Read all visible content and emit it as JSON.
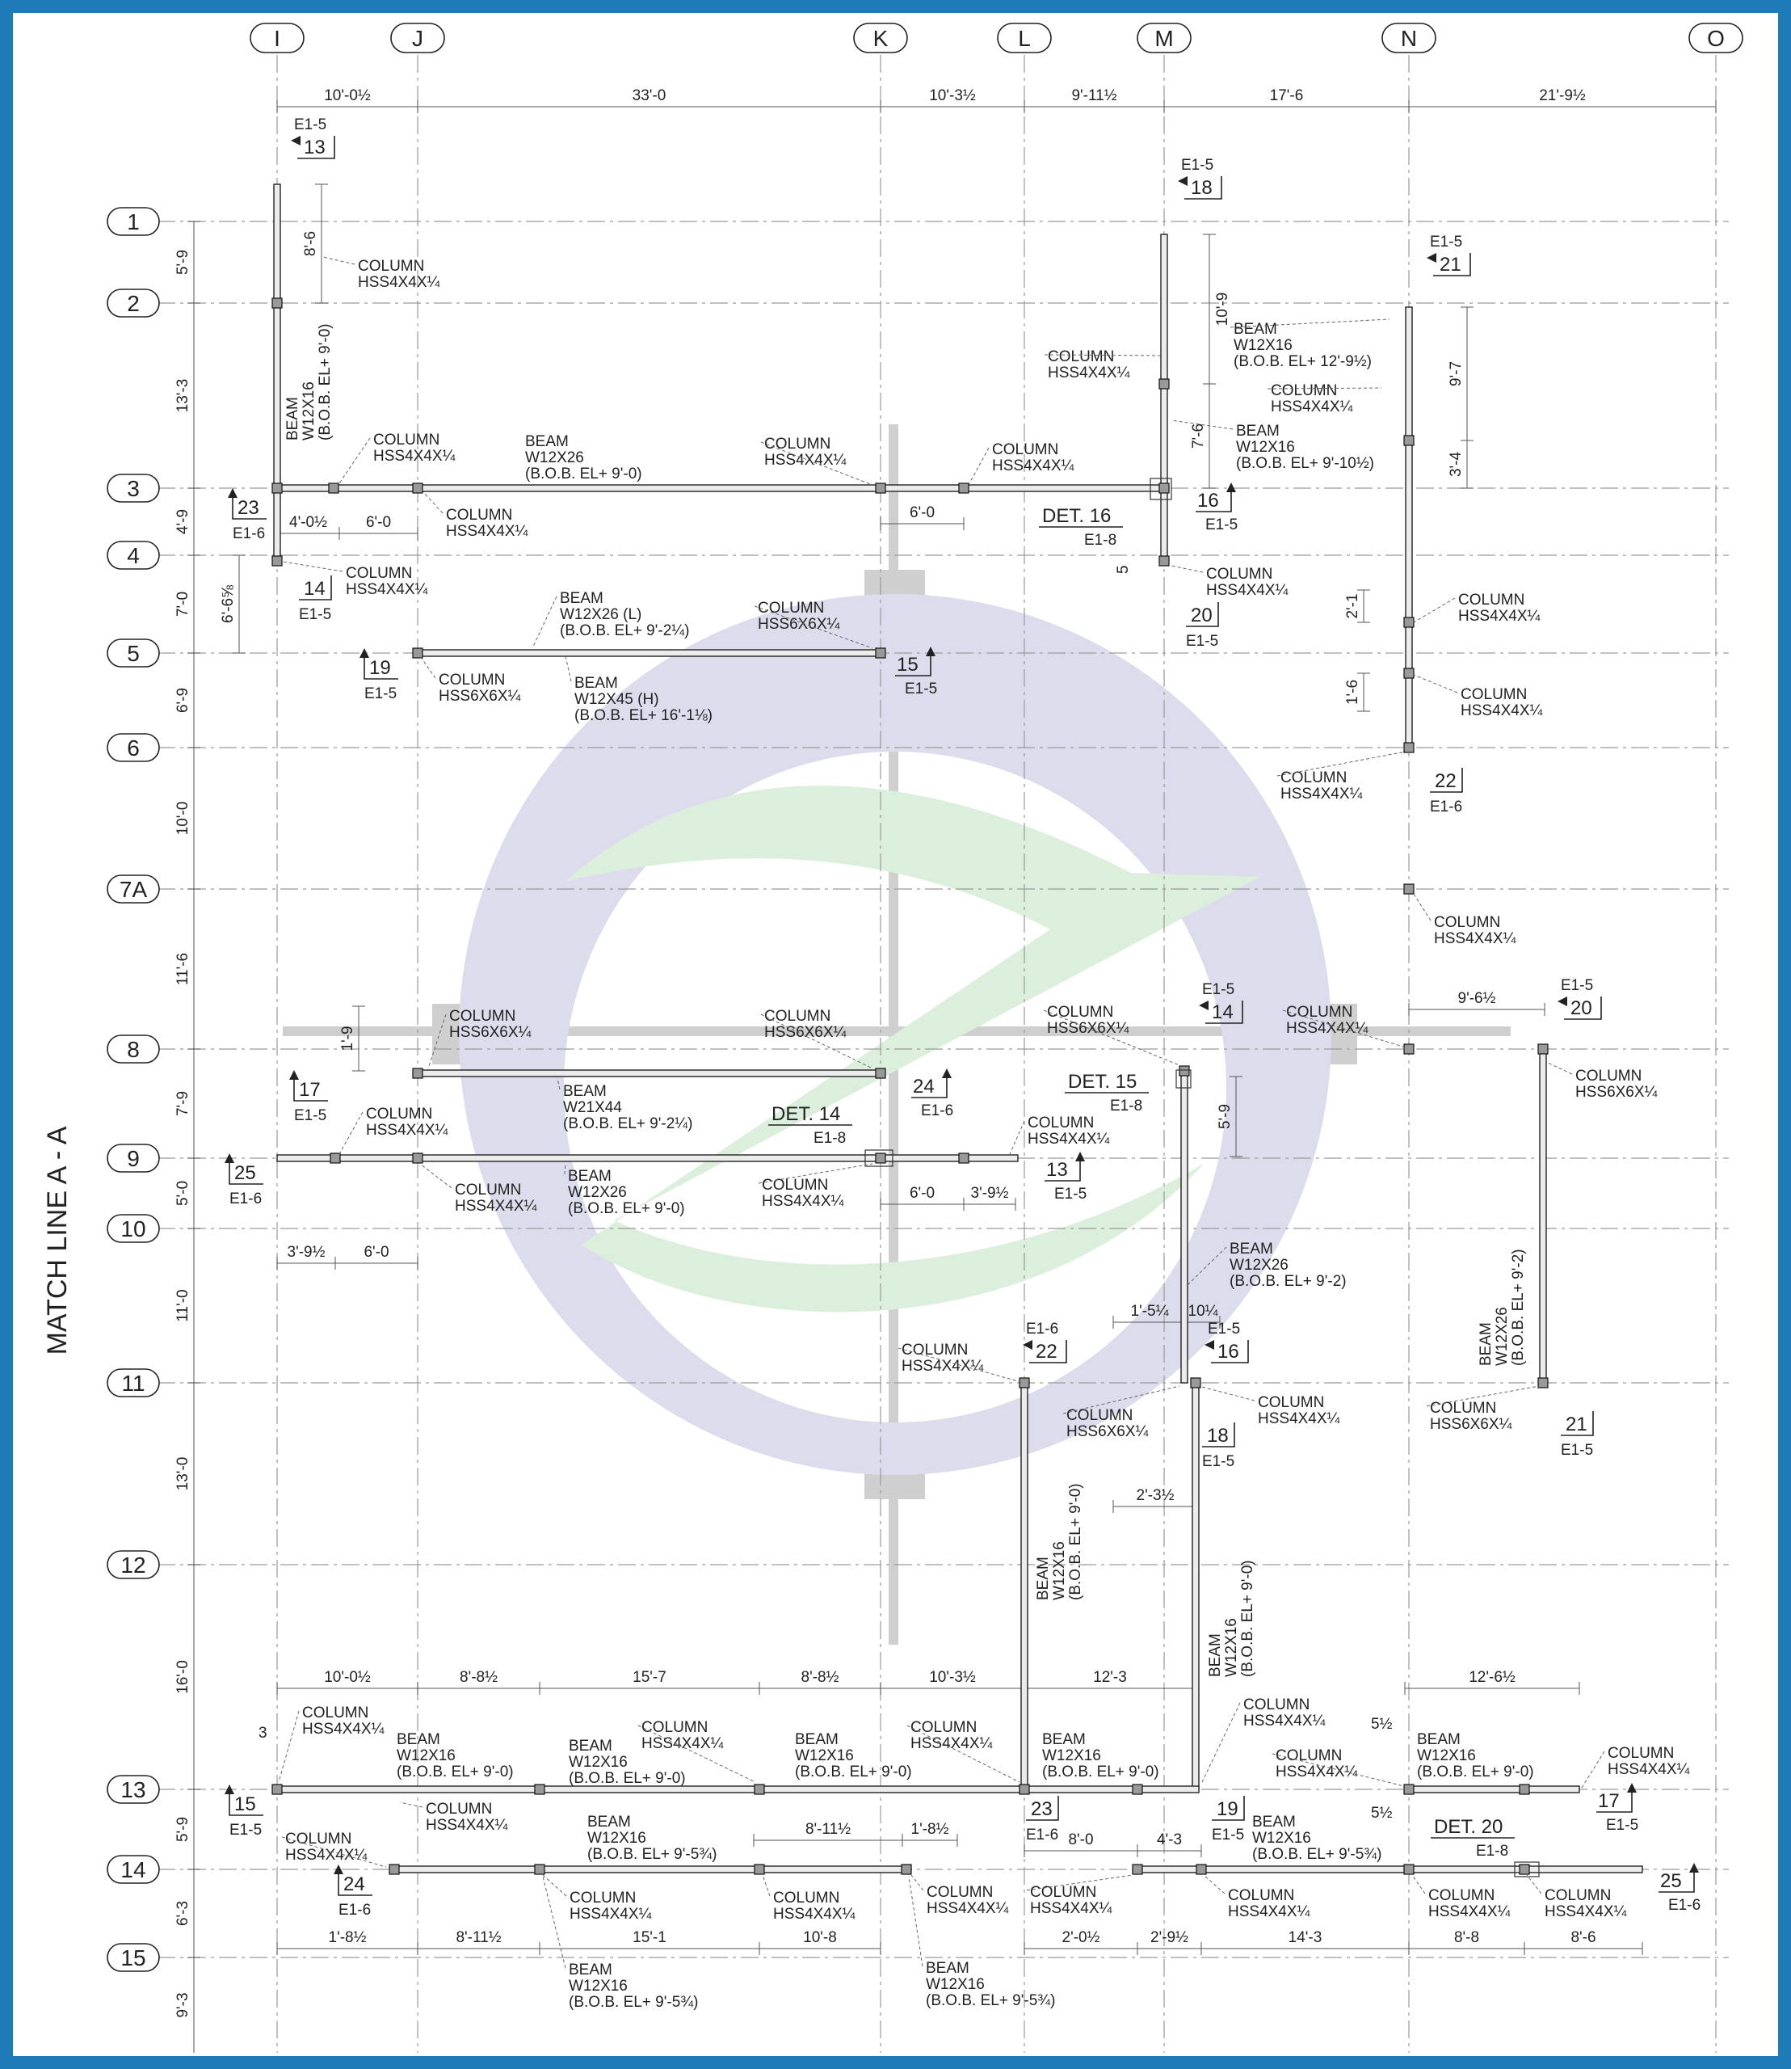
{
  "sheet": {
    "match_line": "MATCH LINE A - A",
    "colors": {
      "border": "#1f7bb8",
      "logo_purple": "#dcdcec",
      "logo_green": "#dcefdc",
      "logo_gray": "#cfcfcf"
    }
  },
  "grid_columns": [
    "I",
    "J",
    "K",
    "L",
    "M",
    "N",
    "O"
  ],
  "grid_rows": [
    "1",
    "2",
    "3",
    "4",
    "5",
    "6",
    "7A",
    "8",
    "9",
    "10",
    "11",
    "12",
    "13",
    "14",
    "15"
  ],
  "top_dimensions": [
    "10'-0½",
    "33'-0",
    "10'-3½",
    "9'-11½",
    "17'-6",
    "21'-9½"
  ],
  "row_dimensions": [
    "5'-9",
    "13'-3",
    "4'-9",
    "7'-0",
    "6'-9",
    "10'-0",
    "11'-6",
    "7'-9",
    "5'-0",
    "11'-0",
    "13'-0",
    "16'-0",
    "5'-9",
    "6'-3",
    "9'-3"
  ],
  "lower_dimensions_13": [
    "10'-0½",
    "8'-8½",
    "15'-7",
    "8'-8½",
    "10'-3½",
    "12'-3",
    "12'-6½"
  ],
  "lower_dimensions_15": [
    "1'-8½",
    "8'-11½",
    "15'-1",
    "10'-8",
    "2'-0½",
    "2'-9½",
    "14'-3",
    "8'-8",
    "8'-6"
  ],
  "local_dimensions": {
    "d1": "8'-6",
    "d2": "4'-0½",
    "d3": "6'-0",
    "d4": "6'-6⅝",
    "d5": "6'-0",
    "d6": "10'-9",
    "d7": "7'-6",
    "d8": "5",
    "d9": "9'-7",
    "d10": "3'-4",
    "d11": "2'-1",
    "d12": "1'-6",
    "d13": "1'-9",
    "d14": "9'-6½",
    "d15": "5'-9",
    "d16": "3'-9½",
    "d17": "6'-0",
    "d18": "6'-0",
    "d19": "3'-9½",
    "d20": "1'-5¼",
    "d21": "10¼",
    "d22": "2'-3½",
    "d23": "3",
    "d24": "5½",
    "d25": "5½",
    "d26": "8'-11½",
    "d27": "1'-8½",
    "d28": "8'-0",
    "d29": "4'-3"
  },
  "sections": [
    {
      "num": "13",
      "sheet": "E1-5"
    },
    {
      "num": "13",
      "sheet": "E1-5"
    },
    {
      "num": "14",
      "sheet": "E1-5"
    },
    {
      "num": "14",
      "sheet": "E1-5"
    },
    {
      "num": "18",
      "sheet": "E1-5"
    },
    {
      "num": "18",
      "sheet": "E1-5"
    },
    {
      "num": "20",
      "sheet": "E1-5"
    },
    {
      "num": "20",
      "sheet": "E1-5"
    },
    {
      "num": "21",
      "sheet": "E1-5"
    },
    {
      "num": "21",
      "sheet": "E1-5"
    },
    {
      "num": "22",
      "sheet": "E1-6"
    },
    {
      "num": "22",
      "sheet": "E1-6"
    },
    {
      "num": "23",
      "sheet": "E1-6"
    },
    {
      "num": "23",
      "sheet": "E1-6"
    },
    {
      "num": "16",
      "sheet": "E1-5"
    },
    {
      "num": "16",
      "sheet": "E1-5"
    },
    {
      "num": "19",
      "sheet": "E1-5"
    },
    {
      "num": "19",
      "sheet": "E1-5"
    },
    {
      "num": "15",
      "sheet": "E1-5"
    },
    {
      "num": "15",
      "sheet": "E1-5"
    },
    {
      "num": "17",
      "sheet": "E1-5"
    },
    {
      "num": "17",
      "sheet": "E1-5"
    },
    {
      "num": "24",
      "sheet": "E1-6"
    },
    {
      "num": "24",
      "sheet": "E1-6"
    },
    {
      "num": "25",
      "sheet": "E1-6"
    },
    {
      "num": "25",
      "sheet": "E1-6"
    }
  ],
  "details": [
    {
      "title": "DET. 16",
      "sheet": "E1-8"
    },
    {
      "title": "DET. 15",
      "sheet": "E1-8"
    },
    {
      "title": "DET. 14",
      "sheet": "E1-8"
    },
    {
      "title": "DET. 20",
      "sheet": "E1-8"
    }
  ],
  "labels": {
    "col": "COLUMN",
    "beam": "BEAM",
    "hss4": "HSS4X4X¼",
    "hss6": "HSS6X6X¼",
    "w12x16": "W12X16",
    "w12x26": "W12X26",
    "w12x26l": "W12X26 (L)",
    "w12x45h": "W12X45 (H)",
    "w21x44": "W21X44",
    "bob_9_0": "(B.O.B. EL+ 9'-0)",
    "bob_9_2": "(B.O.B. EL+ 9'-2)",
    "bob_9_2q": "(B.O.B. EL+ 9'-2¼)",
    "bob_12_9h": "(B.O.B. EL+ 12'-9½)",
    "bob_9_10h": "(B.O.B. EL+ 9'-10½)",
    "bob_16_1": "(B.O.B. EL+ 16'-1⅛)",
    "bob_9_5": "(B.O.B. EL+ 9'-5¾)"
  }
}
